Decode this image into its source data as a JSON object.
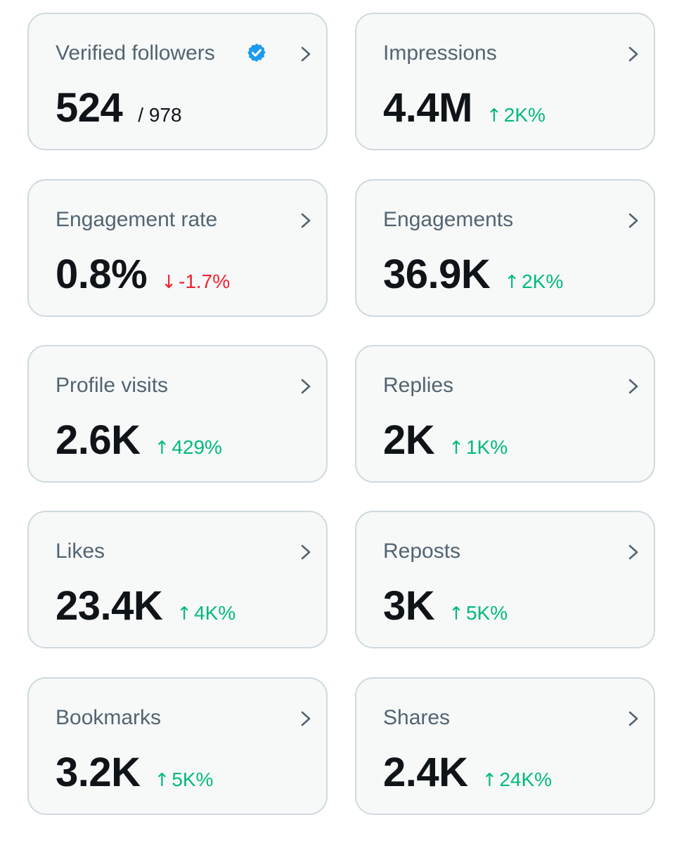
{
  "cards": [
    {
      "label": "Verified followers",
      "value": "524",
      "sub_value": "/ 978",
      "verified_icon": "verified-badge-icon",
      "chevron_icon": "chevron-right-icon"
    },
    {
      "label": "Impressions",
      "value": "4.4M",
      "change": {
        "direction": "up",
        "arrow": "↑",
        "text": "2K%"
      },
      "chevron_icon": "chevron-right-icon"
    },
    {
      "label": "Engagement rate",
      "value": "0.8%",
      "change": {
        "direction": "down",
        "arrow": "↓",
        "text": "-1.7%"
      },
      "chevron_icon": "chevron-right-icon"
    },
    {
      "label": "Engagements",
      "value": "36.9K",
      "change": {
        "direction": "up",
        "arrow": "↑",
        "text": "2K%"
      },
      "chevron_icon": "chevron-right-icon"
    },
    {
      "label": "Profile visits",
      "value": "2.6K",
      "change": {
        "direction": "up",
        "arrow": "↑",
        "text": "429%"
      },
      "chevron_icon": "chevron-right-icon"
    },
    {
      "label": "Replies",
      "value": "2K",
      "change": {
        "direction": "up",
        "arrow": "↑",
        "text": "1K%"
      },
      "chevron_icon": "chevron-right-icon"
    },
    {
      "label": "Likes",
      "value": "23.4K",
      "change": {
        "direction": "up",
        "arrow": "↑",
        "text": "4K%"
      },
      "chevron_icon": "chevron-right-icon"
    },
    {
      "label": "Reposts",
      "value": "3K",
      "change": {
        "direction": "up",
        "arrow": "↑",
        "text": "5K%"
      },
      "chevron_icon": "chevron-right-icon"
    },
    {
      "label": "Bookmarks",
      "value": "3.2K",
      "change": {
        "direction": "up",
        "arrow": "↑",
        "text": "5K%"
      },
      "chevron_icon": "chevron-right-icon"
    },
    {
      "label": "Shares",
      "value": "2.4K",
      "change": {
        "direction": "up",
        "arrow": "↑",
        "text": "24K%"
      },
      "chevron_icon": "chevron-right-icon"
    }
  ],
  "colors": {
    "card_background": "#f7f9f9",
    "card_border": "#cfd9de",
    "label": "#536471",
    "value": "#0f1419",
    "positive": "#00ba7c",
    "negative": "#f4212e",
    "verified_blue": "#1d9bf0",
    "chevron": "#536471"
  }
}
